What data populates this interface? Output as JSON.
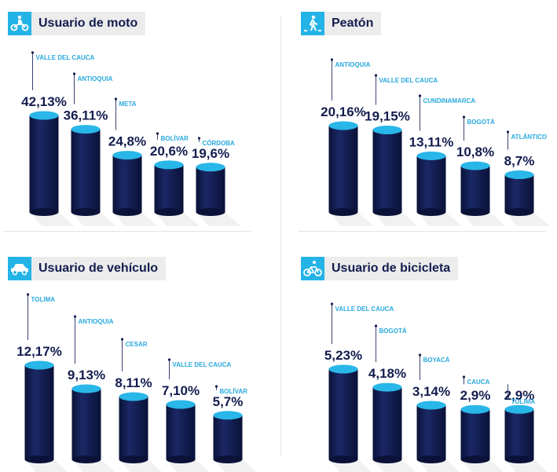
{
  "colors": {
    "bar": "#131d4f",
    "bar_top": "#29b6e8",
    "label": "#29a9de",
    "value": "#131d4f"
  },
  "chart_data": [
    {
      "type": "bar",
      "title": "Usuario de moto",
      "icon": "motorcycle-icon",
      "categories": [
        "VALLE DEL CAUCA",
        "ANTIOQUIA",
        "META",
        "BOLÍVAR",
        "CÓRDOBA"
      ],
      "values": [
        42.13,
        36.11,
        24.8,
        20.6,
        19.6
      ],
      "value_labels": [
        "42,13%",
        "36,11%",
        "24,8%",
        "20,6%",
        "19,6%"
      ],
      "unit": "%"
    },
    {
      "type": "bar",
      "title": "Peatón",
      "icon": "pedestrian-icon",
      "categories": [
        "ANTIOQUIA",
        "VALLE DEL CAUCA",
        "CUNDINAMARCA",
        "BOGOTÁ",
        "ATLÁNTICO"
      ],
      "values": [
        20.16,
        19.15,
        13.11,
        10.8,
        8.7
      ],
      "value_labels": [
        "20,16%",
        "19,15%",
        "13,11%",
        "10,8%",
        "8,7%"
      ],
      "unit": "%"
    },
    {
      "type": "bar",
      "title": "Usuario de vehículo",
      "icon": "car-icon",
      "categories": [
        "TOLIMA",
        "ANTIOQUIA",
        "CESAR",
        "VALLE DEL CAUCA",
        "BOLÍVAR"
      ],
      "values": [
        12.17,
        9.13,
        8.11,
        7.1,
        5.7
      ],
      "value_labels": [
        "12,17%",
        "9,13%",
        "8,11%",
        "7,10%",
        "5,7%"
      ],
      "unit": "%"
    },
    {
      "type": "bar",
      "title": "Usuario de bicicleta",
      "icon": "bicycle-icon",
      "categories": [
        "VALLE DEL CAUCA",
        "BOGOTÁ",
        "BOYACÁ",
        "CAUCA",
        "TOLIMA"
      ],
      "values": [
        5.23,
        4.18,
        3.14,
        2.9,
        2.9
      ],
      "value_labels": [
        "5,23%",
        "4,18%",
        "3,14%",
        "2,9%",
        "2,9%"
      ],
      "unit": "%"
    }
  ]
}
